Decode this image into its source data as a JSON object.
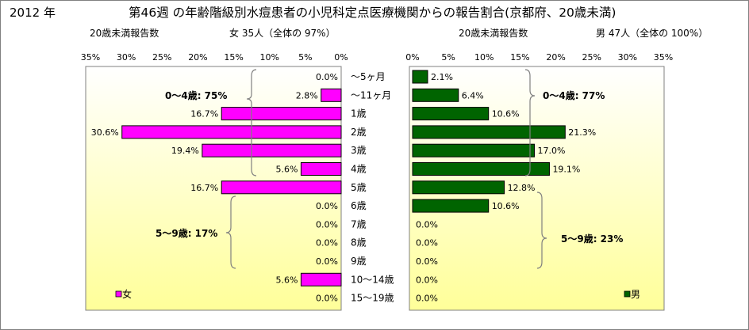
{
  "header": {
    "year": "2012 年",
    "title": "第46週 の年齢階級別水痘患者の小児科定点医療機関からの報告割合(京都府、20歳未満)"
  },
  "left_panel": {
    "subtitle": "20歳未満報告数",
    "summary": "女 35人（全体の 97%）",
    "legend": "女",
    "bracket_labels": [
      "0～4歳: 75%",
      "5～9歳: 17%"
    ]
  },
  "right_panel": {
    "subtitle": "20歳未満報告数",
    "summary": "男 47人（全体の 100%）",
    "legend": "男",
    "bracket_labels": [
      "0～4歳: 77%",
      "5～9歳: 23%"
    ]
  },
  "colors": {
    "female": "#ff00ff",
    "male": "#006400",
    "plot_gradient_top": "#ffffff",
    "plot_gradient_bottom": "#ffff99"
  },
  "chart_data": [
    {
      "type": "bar",
      "orientation": "horizontal",
      "direction": "right-to-left",
      "categories": [
        "～5ヶ月",
        "～11ヶ月",
        "1歳",
        "2歳",
        "3歳",
        "4歳",
        "5歳",
        "6歳",
        "7歳",
        "8歳",
        "9歳",
        "10～14歳",
        "15～19歳"
      ],
      "series": [
        {
          "name": "女",
          "values": [
            0.0,
            2.8,
            16.7,
            30.6,
            19.4,
            5.6,
            16.7,
            0.0,
            0.0,
            0.0,
            0.0,
            5.6,
            0.0
          ],
          "labels": [
            "0.0%",
            "2.8%",
            "16.7%",
            "30.6%",
            "19.4%",
            "5.6%",
            "16.7%",
            "0.0%",
            "0.0%",
            "0.0%",
            "0.0%",
            "5.6%",
            "0.0%"
          ]
        }
      ],
      "ticks": [
        "35%",
        "30%",
        "25%",
        "20%",
        "15%",
        "10%",
        "5%",
        "0%"
      ],
      "xlim": [
        0,
        35
      ],
      "legend_position": "bottom-left"
    },
    {
      "type": "bar",
      "orientation": "horizontal",
      "direction": "left-to-right",
      "categories": [
        "～5ヶ月",
        "～11ヶ月",
        "1歳",
        "2歳",
        "3歳",
        "4歳",
        "5歳",
        "6歳",
        "7歳",
        "8歳",
        "9歳",
        "10～14歳",
        "15～19歳"
      ],
      "series": [
        {
          "name": "男",
          "values": [
            2.1,
            6.4,
            10.6,
            21.3,
            17.0,
            19.1,
            12.8,
            10.6,
            0.0,
            0.0,
            0.0,
            0.0,
            0.0
          ],
          "labels": [
            "2.1%",
            "6.4%",
            "10.6%",
            "21.3%",
            "17.0%",
            "19.1%",
            "12.8%",
            "10.6%",
            "0.0%",
            "0.0%",
            "0.0%",
            "0.0%",
            "0.0%"
          ]
        }
      ],
      "ticks": [
        "0%",
        "5%",
        "10%",
        "15%",
        "20%",
        "25%",
        "30%",
        "35%"
      ],
      "xlim": [
        0,
        35
      ],
      "legend_position": "bottom-right"
    }
  ]
}
